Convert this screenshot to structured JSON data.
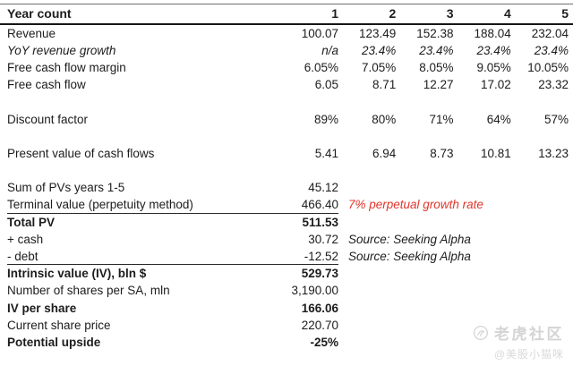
{
  "colors": {
    "accent_red": "#e0352b",
    "text": "#1c1c1c",
    "watermark_gray": "#d4d4d4"
  },
  "table": {
    "rows": [
      {
        "header": true,
        "label": "Year count",
        "values": [
          "1",
          "2",
          "3",
          "4",
          "5"
        ]
      },
      {
        "label": "Revenue",
        "values": [
          "100.07",
          "123.49",
          "152.38",
          "188.04",
          "232.04"
        ]
      },
      {
        "label": "YoY revenue growth",
        "values": [
          "n/a",
          "23.4%",
          "23.4%",
          "23.4%",
          "23.4%"
        ],
        "italic": true
      },
      {
        "label": "Free cash flow margin",
        "values": [
          "6.05%",
          "7.05%",
          "8.05%",
          "9.05%",
          "10.05%"
        ]
      },
      {
        "label": "Free cash flow",
        "values": [
          "6.05",
          "8.71",
          "12.27",
          "17.02",
          "23.32"
        ]
      },
      {
        "blank": true
      },
      {
        "label": "Discount factor",
        "values": [
          "89%",
          "80%",
          "71%",
          "64%",
          "57%"
        ]
      },
      {
        "blank": true
      },
      {
        "label": "Present value of cash flows",
        "values": [
          "5.41",
          "6.94",
          "8.73",
          "10.81",
          "13.23"
        ]
      },
      {
        "blank": true
      },
      {
        "label": "Sum of PVs years 1-5",
        "value": "45.12"
      },
      {
        "label": "Terminal value (perpetuity method)",
        "value": "466.40",
        "note": "7% perpetual growth rate",
        "note_red": true,
        "underline": true
      },
      {
        "label": "Total PV",
        "value": "511.53",
        "bold": true
      },
      {
        "label": "+ cash",
        "value": "30.72",
        "note": "Source: Seeking Alpha"
      },
      {
        "label": "- debt",
        "value": "-12.52",
        "note": "Source: Seeking Alpha",
        "underline": true
      },
      {
        "label": "Intrinsic value (IV), bln $",
        "value": "529.73",
        "bold": true
      },
      {
        "label": "Number of shares per SA, mln",
        "value": "3,190.00"
      },
      {
        "label": "IV per share",
        "value": "166.06",
        "bold": true
      },
      {
        "label": "Current share price",
        "value": "220.70"
      },
      {
        "label": "Potential upside",
        "value": "-25%",
        "bold": true
      }
    ]
  },
  "watermark": {
    "brand": "老虎社区",
    "handle": "@美股小猫咪",
    "logo": "tiger-community-logo"
  },
  "chart_data": {
    "type": "table",
    "columns": [
      "Year count",
      "1",
      "2",
      "3",
      "4",
      "5"
    ],
    "rows": [
      {
        "label": "Revenue",
        "values": [
          100.07,
          123.49,
          152.38,
          188.04,
          232.04
        ]
      },
      {
        "label": "YoY revenue growth",
        "values": [
          "n/a",
          "23.4%",
          "23.4%",
          "23.4%",
          "23.4%"
        ]
      },
      {
        "label": "Free cash flow margin",
        "values": [
          "6.05%",
          "7.05%",
          "8.05%",
          "9.05%",
          "10.05%"
        ]
      },
      {
        "label": "Free cash flow",
        "values": [
          6.05,
          8.71,
          12.27,
          17.02,
          23.32
        ]
      },
      {
        "label": "Discount factor",
        "values": [
          "89%",
          "80%",
          "71%",
          "64%",
          "57%"
        ]
      },
      {
        "label": "Present value of cash flows",
        "values": [
          5.41,
          6.94,
          8.73,
          10.81,
          13.23
        ]
      }
    ],
    "summary_rows": [
      {
        "label": "Sum of PVs years 1-5",
        "value": 45.12
      },
      {
        "label": "Terminal value (perpetuity method)",
        "value": 466.4,
        "note": "7% perpetual growth rate"
      },
      {
        "label": "Total PV",
        "value": 511.53
      },
      {
        "label": "+ cash",
        "value": 30.72,
        "note": "Source: Seeking Alpha"
      },
      {
        "label": "- debt",
        "value": -12.52,
        "note": "Source: Seeking Alpha"
      },
      {
        "label": "Intrinsic value (IV), bln $",
        "value": 529.73
      },
      {
        "label": "Number of shares per SA, mln",
        "value": 3190.0
      },
      {
        "label": "IV per share",
        "value": 166.06
      },
      {
        "label": "Current share price",
        "value": 220.7
      },
      {
        "label": "Potential upside",
        "value": "-25%"
      }
    ],
    "layout": {
      "grid": false,
      "first_column_alignment": "left",
      "value_alignment": "right"
    }
  }
}
